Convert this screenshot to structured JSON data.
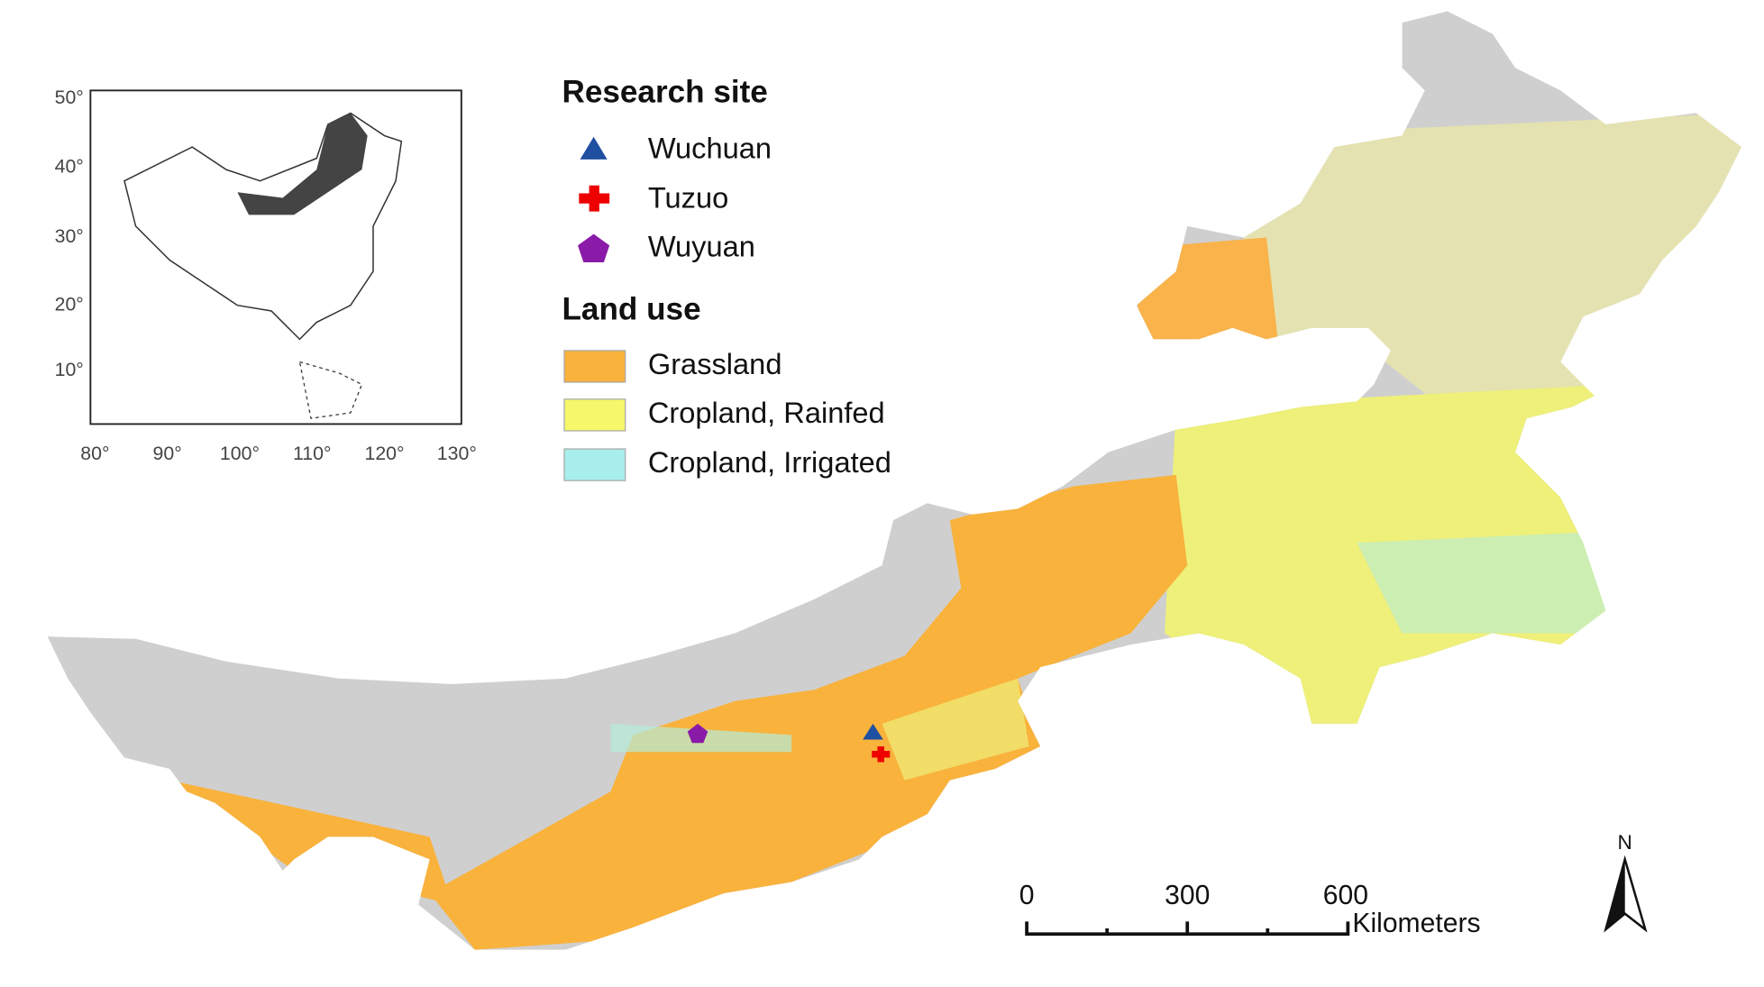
{
  "inset": {
    "y_labels": [
      "50°",
      "40°",
      "30°",
      "20°",
      "10°"
    ],
    "x_labels": [
      "80°",
      "90°",
      "100°",
      "110°",
      "120°",
      "130°"
    ]
  },
  "legend": {
    "site_title": "Research site",
    "sites": [
      "Wuchuan",
      "Tuzuo",
      "Wuyuan"
    ],
    "land_title": "Land use",
    "classes": [
      "Grassland",
      "Cropland, Rainfed",
      "Cropland, Irrigated"
    ]
  },
  "scale_bar": {
    "labels": [
      "0",
      "300",
      "600"
    ],
    "unit": "Kilometers"
  },
  "north": "N"
}
